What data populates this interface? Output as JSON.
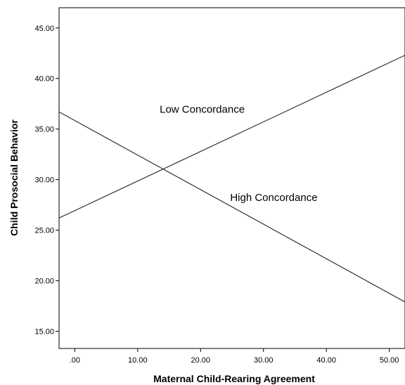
{
  "chart_data": {
    "type": "line",
    "title": "",
    "xlabel": "Maternal Child-Rearing Agreement",
    "ylabel": "Child Prosocial Behavior",
    "xlim": [
      -2.5,
      52.5
    ],
    "ylim": [
      13.3,
      47.0
    ],
    "x_ticks": [
      0,
      10,
      20,
      30,
      40,
      50
    ],
    "x_tick_labels": [
      ".00",
      "10.00",
      "20.00",
      "30.00",
      "40.00",
      "50.00"
    ],
    "y_ticks": [
      15,
      20,
      25,
      30,
      35,
      40,
      45
    ],
    "y_tick_labels": [
      "15.00",
      "20.00",
      "25.00",
      "30.00",
      "35.00",
      "40.00",
      "45.00"
    ],
    "grid": false,
    "legend": "none",
    "series": [
      {
        "name": "Low Concordance",
        "x": [
          -2.5,
          52.5
        ],
        "y": [
          26.2,
          42.3
        ],
        "label_at": [
          13.5,
          36.6
        ]
      },
      {
        "name": "High Concordance",
        "x": [
          -2.5,
          52.5
        ],
        "y": [
          36.7,
          17.9
        ],
        "label_at": [
          24.7,
          27.9
        ]
      }
    ],
    "line_color": "#333333"
  }
}
